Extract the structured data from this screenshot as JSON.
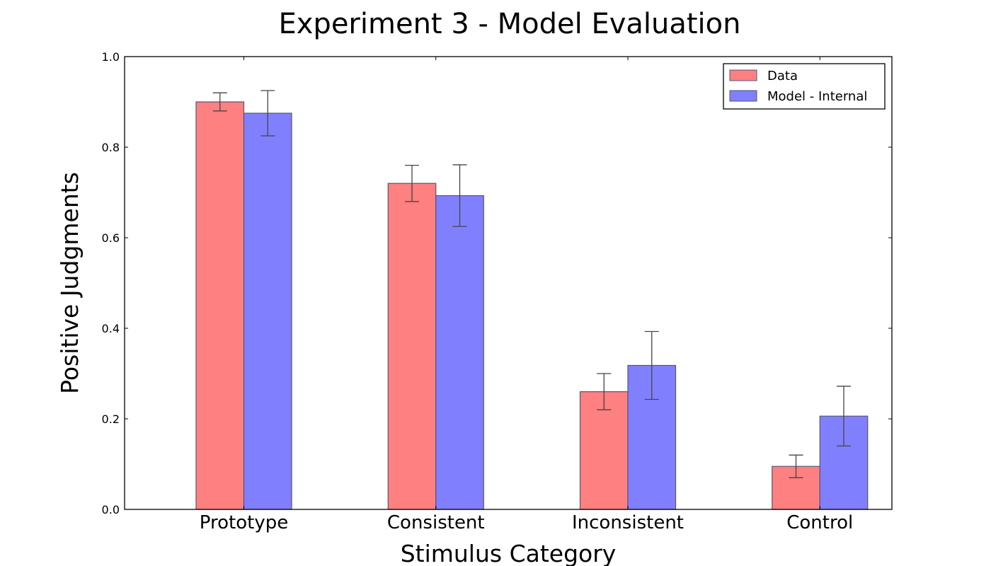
{
  "chart_data": {
    "type": "bar",
    "title": "Experiment 3 - Model Evaluation",
    "xlabel": "Stimulus Category",
    "ylabel": "Positive Judgments",
    "categories": [
      "Prototype",
      "Consistent",
      "Inconsistent",
      "Control"
    ],
    "ylim": [
      0.0,
      1.0
    ],
    "yticks": [
      "0.0",
      "0.2",
      "0.4",
      "0.6",
      "0.8",
      "1.0"
    ],
    "grid": false,
    "legend_position": "top-right",
    "series": [
      {
        "name": "Data",
        "color": "#ff8080",
        "values": [
          0.9,
          0.72,
          0.26,
          0.095
        ],
        "errors": [
          0.02,
          0.04,
          0.04,
          0.025
        ]
      },
      {
        "name": "Model - Internal",
        "color": "#8080ff",
        "values": [
          0.875,
          0.693,
          0.318,
          0.206
        ],
        "errors": [
          0.05,
          0.068,
          0.075,
          0.066
        ]
      }
    ]
  }
}
